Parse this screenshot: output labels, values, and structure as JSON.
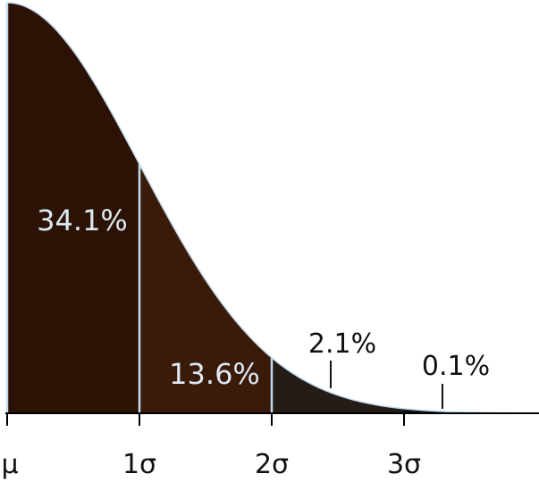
{
  "chart_data": {
    "type": "area",
    "distribution": "half-normal",
    "x_ticks": [
      {
        "value": 0,
        "label": "μ"
      },
      {
        "value": 1,
        "label": "1σ"
      },
      {
        "value": 2,
        "label": "2σ"
      },
      {
        "value": 3,
        "label": "3σ"
      }
    ],
    "xlim": [
      0,
      4
    ],
    "grid": false,
    "regions": [
      {
        "from": 0,
        "to": 1,
        "label": "34.1%",
        "value": 34.1,
        "color": "#2b1205",
        "label_color": "#dce8f2"
      },
      {
        "from": 1,
        "to": 2,
        "label": "13.6%",
        "value": 13.6,
        "color": "#3a1a08",
        "label_color": "#dce8f2"
      },
      {
        "from": 2,
        "to": 3,
        "label": "2.1%",
        "value": 2.1,
        "color": "#241c17",
        "label_color": "#111111"
      },
      {
        "from": 3,
        "to": 4,
        "label": "0.1%",
        "value": 0.1,
        "color": "#111111",
        "label_color": "#111111"
      }
    ],
    "colors": {
      "outline": "#c3dbef",
      "axis": "#000000"
    }
  }
}
